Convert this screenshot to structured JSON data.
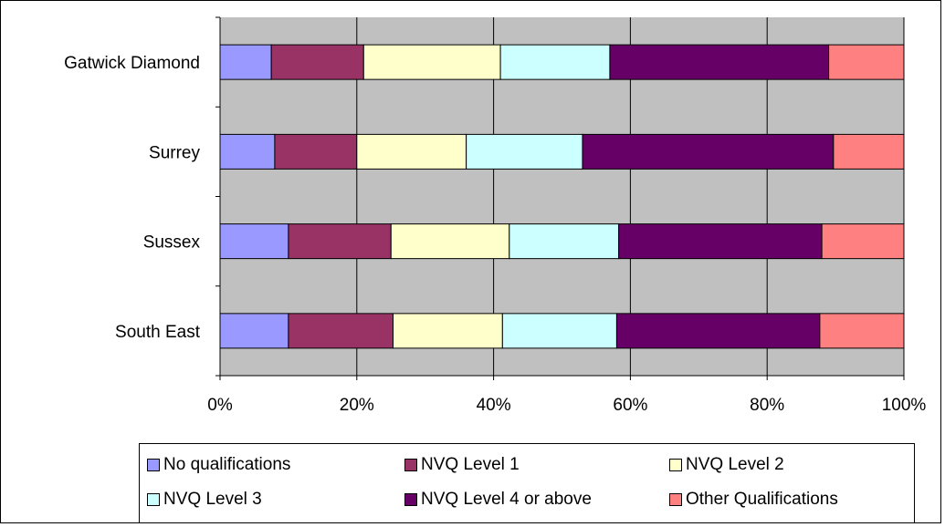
{
  "chart_data": {
    "type": "bar",
    "orientation": "horizontal",
    "stacked": "percent",
    "categories": [
      "Gatwick Diamond",
      "Surrey",
      "Sussex",
      "South East"
    ],
    "series": [
      {
        "name": "No qualifications",
        "color": "#9999ff",
        "values": [
          7.5,
          8,
          10,
          10
        ]
      },
      {
        "name": "NVQ Level 1",
        "color": "#993366",
        "values": [
          13.5,
          12,
          15,
          15.3
        ]
      },
      {
        "name": "NVQ Level 2",
        "color": "#ffffcc",
        "values": [
          20,
          16,
          17.3,
          16
        ]
      },
      {
        "name": "NVQ Level 3",
        "color": "#ccffff",
        "values": [
          16,
          17,
          16,
          16.7
        ]
      },
      {
        "name": "NVQ Level 4 or above",
        "color": "#660066",
        "values": [
          32,
          36.7,
          29.7,
          29.7
        ]
      },
      {
        "name": "Other Qualifications",
        "color": "#ff8080",
        "values": [
          11,
          10.3,
          12,
          12.3
        ]
      }
    ],
    "xlim": [
      0,
      100
    ],
    "x_ticks": [
      "0%",
      "20%",
      "40%",
      "60%",
      "80%",
      "100%"
    ],
    "grid": true,
    "plot_background": "#c0c0c0",
    "legend": "bottom"
  }
}
